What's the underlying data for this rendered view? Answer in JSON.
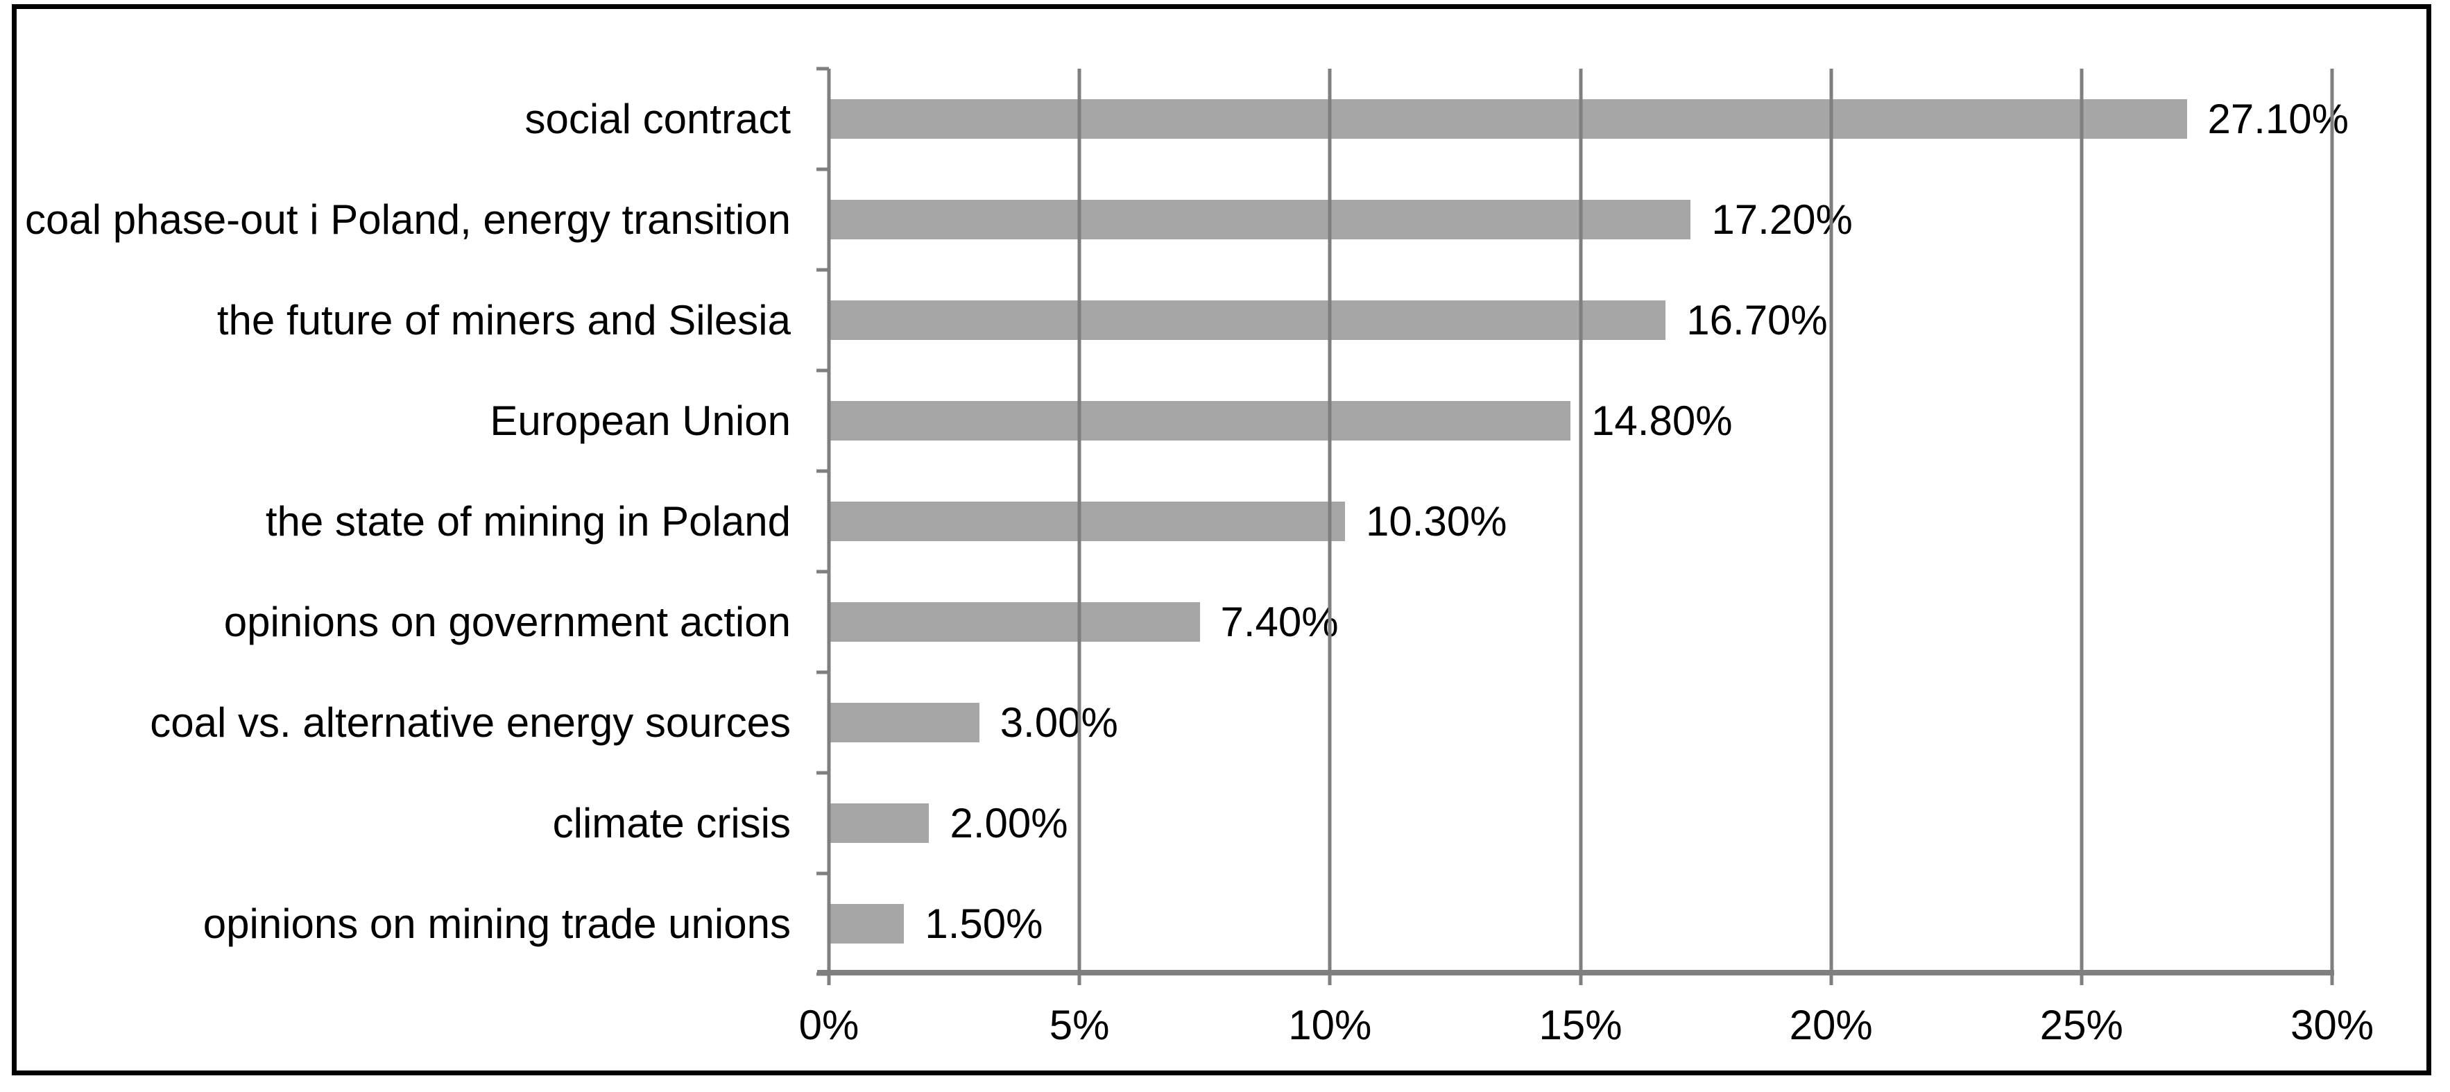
{
  "chart_data": {
    "type": "bar",
    "orientation": "horizontal",
    "title": "",
    "xlabel": "",
    "ylabel": "",
    "categories": [
      "social contract",
      "coal phase-out i Poland, energy transition",
      "the future of miners and Silesia",
      "European Union",
      "the state of mining in Poland",
      "opinions on government action",
      "coal vs. alternative energy sources",
      "climate crisis",
      "opinions on mining trade unions"
    ],
    "values": [
      27.1,
      17.2,
      16.7,
      14.8,
      10.3,
      7.4,
      3.0,
      2.0,
      1.5
    ],
    "value_labels": [
      "27.10%",
      "17.20%",
      "16.70%",
      "14.80%",
      "10.30%",
      "7.40%",
      "3.00%",
      "2.00%",
      "1.50%"
    ],
    "x_ticks": [
      "0%",
      "5%",
      "10%",
      "15%",
      "20%",
      "25%",
      "30%"
    ],
    "xlim": [
      0,
      30
    ],
    "grid": "vertical",
    "legend": "none",
    "colors": {
      "bar": "#a6a6a6",
      "axis": "#7f7f7f",
      "text": "#000000",
      "frame_border": "#000000",
      "background": "#ffffff"
    }
  }
}
